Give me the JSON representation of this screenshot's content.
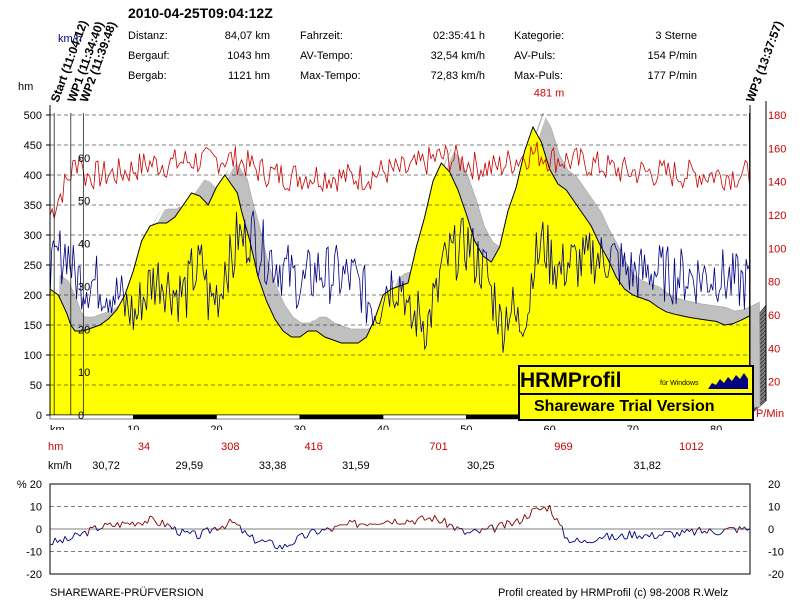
{
  "header": {
    "title": "2010-04-25T09:04:12Z",
    "stats": [
      {
        "label": "Distanz:",
        "value": "84,07 km"
      },
      {
        "label": "Bergauf:",
        "value": "1043 hm"
      },
      {
        "label": "Bergab:",
        "value": "1121 hm"
      },
      {
        "label": "Fahrzeit:",
        "value": "02:35:41 h"
      },
      {
        "label": "AV-Tempo:",
        "value": "32,54 km/h"
      },
      {
        "label": "Max-Tempo:",
        "value": "72,83 km/h"
      },
      {
        "label": "Kategorie:",
        "value": "3 Sterne"
      },
      {
        "label": "AV-Puls:",
        "value": "154 P/min"
      },
      {
        "label": "Max-Puls:",
        "value": "177 P/min"
      }
    ]
  },
  "brand": {
    "name": "HRMProfil",
    "sub": "für Windows",
    "trial": "Shareware Trial  Version"
  },
  "footer": {
    "left": "SHAREWARE-PRÜFVERSION",
    "right": "Profil created by HRMProfil (c) 98-2008 R.Welz"
  },
  "segments": {
    "hm_label": "hm",
    "kmh_label": "km/h",
    "hm": [
      "34",
      "308",
      "416",
      "701",
      "969",
      "1012"
    ],
    "kmh": [
      "30,72",
      "29,59",
      "33,38",
      "31,59",
      "30,25",
      "31,82"
    ],
    "hm_x_km": [
      12,
      22,
      32,
      47,
      62,
      77
    ],
    "kmh_x_km": [
      7,
      17,
      27,
      37,
      52,
      72,
      82
    ]
  },
  "colors": {
    "altitude_fill": "#ffff00",
    "heart_rate": "#cc0000",
    "speed": "#000080",
    "shadow": "#c0c0c0",
    "gradient_pos": "#800000",
    "gradient_neg": "#000080"
  },
  "chart_data": [
    {
      "type": "area",
      "title": "",
      "left_axis_title": "hm",
      "left_axis_top_title": "km/h",
      "right_axis_title": "P/Min",
      "xlabel": "km",
      "xlim": [
        0,
        84.07
      ],
      "ylim": [
        0,
        500
      ],
      "x_ticks": [
        10,
        20,
        30,
        40,
        50,
        60,
        70,
        80
      ],
      "y_ticks": [
        0,
        50,
        100,
        150,
        200,
        250,
        300,
        350,
        400,
        450,
        500
      ],
      "speed_ticks": [
        0,
        10,
        20,
        30,
        40,
        50,
        60
      ],
      "hr_ticks": [
        20,
        40,
        60,
        80,
        100,
        120,
        140,
        160,
        180
      ],
      "hr_range": [
        0,
        180
      ],
      "speed_range": [
        0,
        70
      ],
      "waypoints": [
        {
          "label": "Start (11:04:12)",
          "km": 0.5
        },
        {
          "label": "WP1 (11:34:40)",
          "km": 2.5
        },
        {
          "label": "WP2 (11:39:48)",
          "km": 4
        },
        {
          "label": "WP3 (13:37:57)",
          "km": 84
        }
      ],
      "max_annotation": {
        "label": "481 m",
        "km": 60.5,
        "value": 481
      },
      "series": [
        {
          "name": "Höhe",
          "unit": "hm",
          "x": [
            0,
            1,
            2,
            2.5,
            3,
            4,
            5,
            6,
            7,
            8,
            9,
            10,
            11,
            12,
            13,
            14,
            15,
            16,
            17,
            18,
            19,
            20,
            21,
            22,
            22.5,
            23,
            24,
            25,
            26,
            27,
            28,
            29,
            30,
            31,
            32,
            33,
            34,
            35,
            36,
            37,
            38,
            39,
            40,
            41,
            42,
            43,
            44,
            45,
            46,
            47,
            48,
            49,
            50,
            51,
            52,
            53,
            54,
            55,
            56,
            57,
            58,
            59,
            60,
            61,
            62,
            63,
            64,
            65,
            66,
            67,
            68,
            69,
            70,
            71,
            72,
            73,
            74,
            75,
            76,
            77,
            78,
            79,
            80,
            81,
            82,
            83,
            84
          ],
          "values": [
            210,
            200,
            170,
            150,
            140,
            140,
            145,
            150,
            160,
            175,
            200,
            240,
            290,
            315,
            320,
            320,
            330,
            350,
            370,
            365,
            350,
            380,
            400,
            380,
            370,
            340,
            290,
            230,
            190,
            160,
            140,
            130,
            130,
            140,
            140,
            130,
            125,
            120,
            120,
            120,
            130,
            160,
            200,
            210,
            215,
            220,
            280,
            330,
            390,
            420,
            405,
            375,
            335,
            290,
            265,
            255,
            280,
            340,
            380,
            440,
            480,
            455,
            410,
            385,
            375,
            355,
            335,
            315,
            285,
            260,
            230,
            210,
            200,
            195,
            190,
            180,
            172,
            168,
            165,
            162,
            160,
            158,
            156,
            150,
            152,
            158,
            165
          ]
        }
      ]
    },
    {
      "type": "line",
      "title": "",
      "left_axis_title": "% 20",
      "xlim": [
        0,
        84.07
      ],
      "ylim": [
        -20,
        20
      ],
      "y_ticks": [
        -20,
        -10,
        0,
        10,
        20
      ],
      "series": [
        {
          "name": "Steigung",
          "unit": "%",
          "x": [
            0,
            2,
            4,
            6,
            8,
            10,
            12,
            14,
            16,
            18,
            20,
            22,
            24,
            26,
            28,
            30,
            32,
            34,
            36,
            38,
            40,
            42,
            44,
            46,
            48,
            50,
            52,
            54,
            56,
            58,
            60,
            62,
            64,
            66,
            68,
            70,
            72,
            74,
            76,
            78,
            80,
            82,
            84
          ],
          "values": [
            -6,
            -5,
            -2,
            1,
            2,
            3,
            4,
            2,
            -2,
            -3,
            1,
            3,
            -4,
            -6,
            -8,
            -4,
            -1,
            0,
            2,
            3,
            4,
            4,
            4,
            5,
            2,
            -2,
            -1,
            1,
            3,
            8,
            10,
            -4,
            -6,
            -3,
            -4,
            -2,
            -3,
            -2,
            -2,
            -1,
            -1,
            0,
            0
          ]
        }
      ]
    }
  ]
}
